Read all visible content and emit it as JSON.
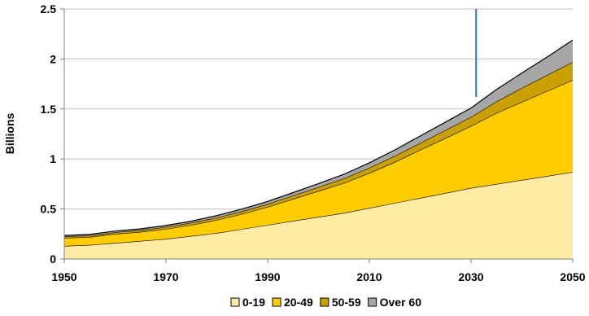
{
  "chart_data": {
    "type": "area",
    "stacked": true,
    "title": "",
    "xlabel": "",
    "ylabel": "Billions",
    "xlim": [
      1950,
      2050
    ],
    "ylim": [
      0,
      2.5
    ],
    "x_ticks": [
      1950,
      1970,
      1990,
      2010,
      2030,
      2050
    ],
    "y_ticks": [
      0,
      0.5,
      1,
      1.5,
      2,
      2.5
    ],
    "y_tick_labels": [
      "0",
      "0.5",
      "1",
      "1.5",
      "2",
      "2.5"
    ],
    "grid": "horizontal",
    "legend_position": "bottom",
    "x": [
      1950,
      1955,
      1960,
      1965,
      1970,
      1975,
      1980,
      1985,
      1990,
      1995,
      2000,
      2005,
      2010,
      2015,
      2020,
      2025,
      2030,
      2035,
      2040,
      2045,
      2050
    ],
    "series": [
      {
        "name": "0-19",
        "color": "#FFEBA3",
        "values": [
          0.13,
          0.14,
          0.16,
          0.18,
          0.2,
          0.23,
          0.26,
          0.3,
          0.34,
          0.38,
          0.42,
          0.46,
          0.51,
          0.56,
          0.61,
          0.66,
          0.71,
          0.75,
          0.79,
          0.83,
          0.87
        ]
      },
      {
        "name": "20-49",
        "color": "#FFCC00",
        "values": [
          0.08,
          0.08,
          0.09,
          0.09,
          0.1,
          0.11,
          0.13,
          0.15,
          0.18,
          0.22,
          0.26,
          0.3,
          0.35,
          0.41,
          0.48,
          0.55,
          0.62,
          0.71,
          0.78,
          0.85,
          0.92
        ]
      },
      {
        "name": "50-59",
        "color": "#C9A000",
        "values": [
          0.015,
          0.016,
          0.017,
          0.018,
          0.02,
          0.022,
          0.024,
          0.027,
          0.03,
          0.034,
          0.039,
          0.045,
          0.052,
          0.06,
          0.07,
          0.08,
          0.09,
          0.115,
          0.14,
          0.16,
          0.18
        ]
      },
      {
        "name": "Over 60",
        "color": "#A6A6A6",
        "values": [
          0.01,
          0.011,
          0.012,
          0.013,
          0.015,
          0.017,
          0.02,
          0.023,
          0.026,
          0.03,
          0.035,
          0.042,
          0.05,
          0.06,
          0.07,
          0.08,
          0.09,
          0.12,
          0.15,
          0.18,
          0.22
        ]
      }
    ],
    "annotations": [
      {
        "type": "vertical_line",
        "x": 2031,
        "y_from": 1.62,
        "y_to": 2.5,
        "color": "#2E75B6"
      }
    ]
  }
}
